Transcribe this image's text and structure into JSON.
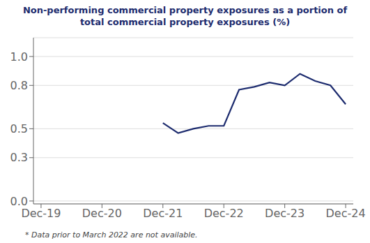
{
  "chart_data": {
    "type": "line",
    "title": "Non-performing commercial property exposures as a portion of\ntotal commercial property exposures (%)",
    "footnote": "* Data prior to March 2022 are not available.",
    "x": [
      8,
      9,
      10,
      11,
      12,
      13,
      14,
      15,
      16,
      17,
      18,
      19,
      20
    ],
    "values": [
      0.54,
      0.47,
      0.5,
      0.52,
      0.52,
      0.77,
      0.79,
      0.82,
      0.8,
      0.88,
      0.83,
      0.8,
      0.67
    ],
    "color": "#1c2b6e",
    "xlim": [
      -0.5,
      20.5
    ],
    "xticks": [
      {
        "value": 0,
        "label": "Dec-19"
      },
      {
        "value": 4,
        "label": "Dec-20"
      },
      {
        "value": 8,
        "label": "Dec-21"
      },
      {
        "value": 12,
        "label": "Dec-22"
      },
      {
        "value": 16,
        "label": "Dec-23"
      },
      {
        "value": 20,
        "label": "Dec-24"
      }
    ],
    "ylim": [
      -0.02,
      1.13
    ],
    "yticks": [
      {
        "value": 0,
        "label": "0.0"
      },
      0.3,
      0.5,
      0.8,
      {
        "value": 1,
        "label": "1.0"
      }
    ],
    "grid": "y"
  }
}
